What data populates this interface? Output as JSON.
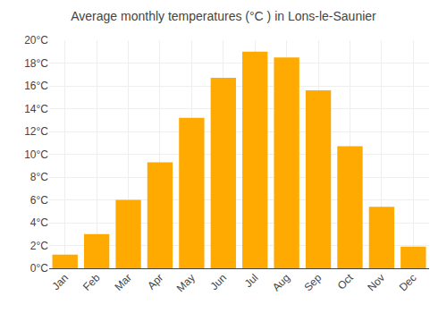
{
  "chart_data": {
    "type": "bar",
    "title": "Average monthly temperatures (°C ) in Lons-le-Saunier",
    "categories": [
      "Jan",
      "Feb",
      "Mar",
      "Apr",
      "May",
      "Jun",
      "Jul",
      "Aug",
      "Sep",
      "Oct",
      "Nov",
      "Dec"
    ],
    "values": [
      1.2,
      3.0,
      6.0,
      9.3,
      13.2,
      16.7,
      19.0,
      18.5,
      15.6,
      10.7,
      5.4,
      1.9
    ],
    "color": "#FFAA00",
    "ylim": [
      0,
      20
    ],
    "yticks": [
      {
        "value": 0,
        "label": "0°C"
      },
      {
        "value": 2,
        "label": "2°C"
      },
      {
        "value": 4,
        "label": "4°C"
      },
      {
        "value": 6,
        "label": "6°C"
      },
      {
        "value": 8,
        "label": "8°C"
      },
      {
        "value": 10,
        "label": "10°C"
      },
      {
        "value": 12,
        "label": "12°C"
      },
      {
        "value": 14,
        "label": "14°C"
      },
      {
        "value": 16,
        "label": "16°C"
      },
      {
        "value": 18,
        "label": "18°C"
      },
      {
        "value": 20,
        "label": "20°C"
      }
    ],
    "grid": true
  }
}
